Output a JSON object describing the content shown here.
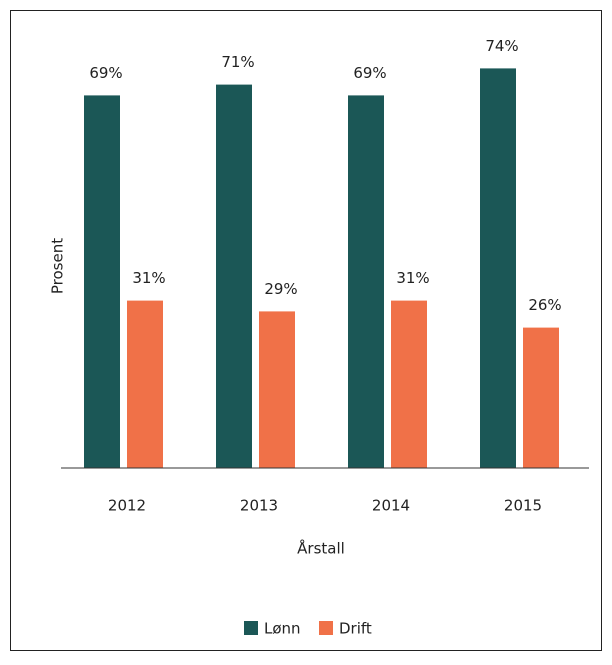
{
  "chart_data": {
    "type": "bar",
    "categories": [
      "2012",
      "2013",
      "2014",
      "2015"
    ],
    "series": [
      {
        "name": "Lønn",
        "color": "#1b5756",
        "values": [
          69,
          71,
          69,
          74
        ],
        "value_labels": [
          "69%",
          "71%",
          "69%",
          "74%"
        ]
      },
      {
        "name": "Drift",
        "color": "#f07148",
        "values": [
          31,
          29,
          31,
          26
        ],
        "value_labels": [
          "31%",
          "29%",
          "31%",
          "26%"
        ]
      }
    ],
    "ylim": [
      0,
      80
    ],
    "ylabel": "Prosent",
    "xlabel": "Årstall",
    "legend": "bottom"
  }
}
